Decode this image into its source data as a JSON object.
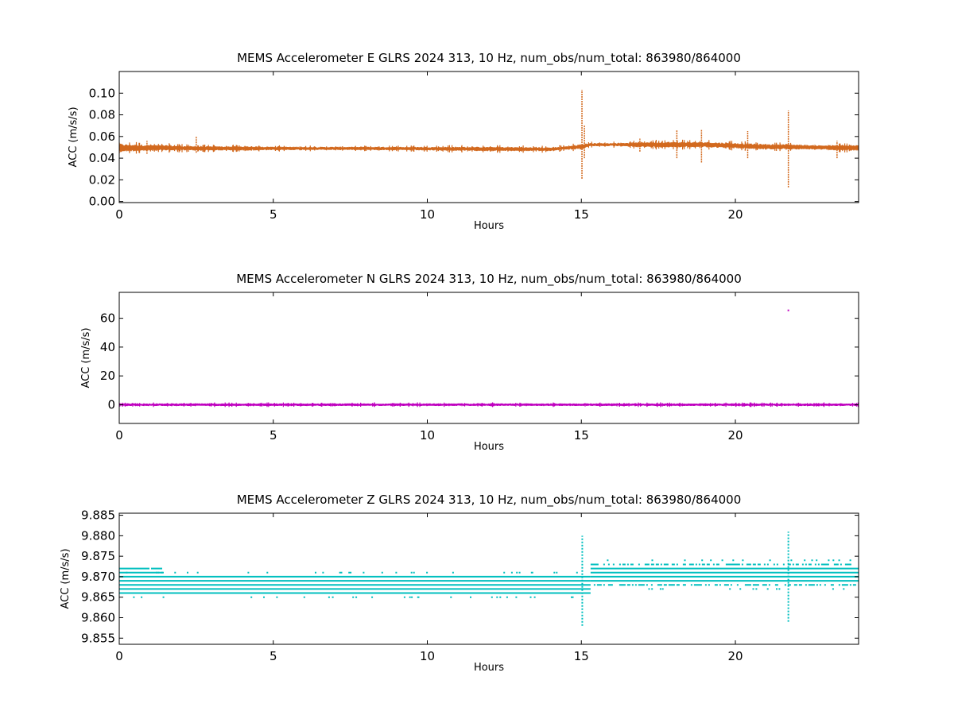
{
  "chart_data": [
    {
      "type": "scatter",
      "title": "MEMS Accelerometer E GLRS 2024 313, 10 Hz, num_obs/num_total: 863980/864000",
      "xlabel": "Hours",
      "ylabel": "ACC (m/s/s)",
      "xlim": [
        0,
        24
      ],
      "ylim": [
        -0.001,
        0.12
      ],
      "xticks": [
        0,
        5,
        10,
        15,
        20
      ],
      "xtick_labels": [
        "0",
        "5",
        "10",
        "15",
        "20"
      ],
      "yticks": [
        0.0,
        0.02,
        0.04,
        0.06,
        0.08,
        0.1
      ],
      "ytick_labels": [
        "0.00",
        "0.02",
        "0.04",
        "0.06",
        "0.08",
        "0.10"
      ],
      "color": "#d2691e",
      "grid": false,
      "series": [
        {
          "band_x": [
            0,
            1.5,
            2.5,
            4,
            6,
            8,
            10,
            12,
            14,
            14.5,
            15.0,
            15.3,
            16,
            17,
            18,
            19,
            20,
            21,
            21.7,
            22.5,
            23.5,
            24
          ],
          "band_lo": [
            0.046,
            0.047,
            0.047,
            0.047,
            0.0475,
            0.0475,
            0.047,
            0.0465,
            0.0465,
            0.048,
            0.048,
            0.051,
            0.051,
            0.05,
            0.05,
            0.05,
            0.049,
            0.048,
            0.048,
            0.048,
            0.047,
            0.047
          ],
          "band_hi": [
            0.053,
            0.052,
            0.051,
            0.051,
            0.0505,
            0.0505,
            0.0505,
            0.0505,
            0.05,
            0.051,
            0.053,
            0.054,
            0.054,
            0.055,
            0.055,
            0.055,
            0.054,
            0.053,
            0.053,
            0.052,
            0.052,
            0.052
          ],
          "spikes": [
            {
              "x": 0.9,
              "lo": 0.044,
              "hi": 0.056
            },
            {
              "x": 2.5,
              "lo": 0.045,
              "hi": 0.06
            },
            {
              "x": 14.3,
              "lo": 0.046,
              "hi": 0.052
            },
            {
              "x": 15.02,
              "lo": 0.021,
              "hi": 0.103
            },
            {
              "x": 15.1,
              "lo": 0.04,
              "hi": 0.07
            },
            {
              "x": 16.9,
              "lo": 0.046,
              "hi": 0.058
            },
            {
              "x": 18.1,
              "lo": 0.04,
              "hi": 0.066
            },
            {
              "x": 18.9,
              "lo": 0.036,
              "hi": 0.066
            },
            {
              "x": 20.4,
              "lo": 0.04,
              "hi": 0.065
            },
            {
              "x": 21.72,
              "lo": 0.013,
              "hi": 0.084
            },
            {
              "x": 23.3,
              "lo": 0.04,
              "hi": 0.056
            }
          ]
        }
      ]
    },
    {
      "type": "scatter",
      "title": "MEMS Accelerometer N GLRS 2024 313, 10 Hz, num_obs/num_total: 863980/864000",
      "xlabel": "Hours",
      "ylabel": "ACC (m/s/s)",
      "xlim": [
        0,
        24
      ],
      "ylim": [
        -13,
        78
      ],
      "xticks": [
        0,
        5,
        10,
        15,
        20
      ],
      "xtick_labels": [
        "0",
        "5",
        "10",
        "15",
        "20"
      ],
      "yticks": [
        0,
        20,
        40,
        60
      ],
      "ytick_labels": [
        "0",
        "20",
        "40",
        "60"
      ],
      "color": "#bf00bf",
      "grid": false,
      "series": [
        {
          "band_x": [
            0,
            24
          ],
          "band_lo": [
            -0.9,
            -0.9
          ],
          "band_hi": [
            0.9,
            0.9
          ],
          "spikes": [],
          "outliers": [
            {
              "x": 21.72,
              "y": 65.5
            }
          ]
        }
      ]
    },
    {
      "type": "scatter",
      "title": "MEMS Accelerometer Z GLRS 2024 313, 10 Hz, num_obs/num_total: 863980/864000",
      "xlabel": "Hours",
      "ylabel": "ACC (m/s/s)",
      "xlim": [
        0,
        24
      ],
      "ylim": [
        9.8535,
        9.8855
      ],
      "xticks": [
        0,
        5,
        10,
        15,
        20
      ],
      "xtick_labels": [
        "0",
        "5",
        "10",
        "15",
        "20"
      ],
      "yticks": [
        9.855,
        9.86,
        9.865,
        9.87,
        9.875,
        9.88,
        9.885
      ],
      "ytick_labels": [
        "9.855",
        "9.860",
        "9.865",
        "9.870",
        "9.875",
        "9.880",
        "9.885"
      ],
      "color": "#00bfbf",
      "grid": false,
      "series": [
        {
          "levels_early": [
            9.866,
            9.867,
            9.868,
            9.869,
            9.87
          ],
          "levels_early_edge": [
            9.871,
            9.872
          ],
          "levels_late": [
            9.869,
            9.87,
            9.871,
            9.872
          ],
          "levels_late_edge": [
            9.868,
            9.873
          ],
          "transition_x": 15.3,
          "spikes": [
            {
              "x": 15.03,
              "lo": 9.858,
              "hi": 9.88
            },
            {
              "x": 21.72,
              "lo": 9.859,
              "hi": 9.881
            }
          ]
        }
      ]
    }
  ]
}
